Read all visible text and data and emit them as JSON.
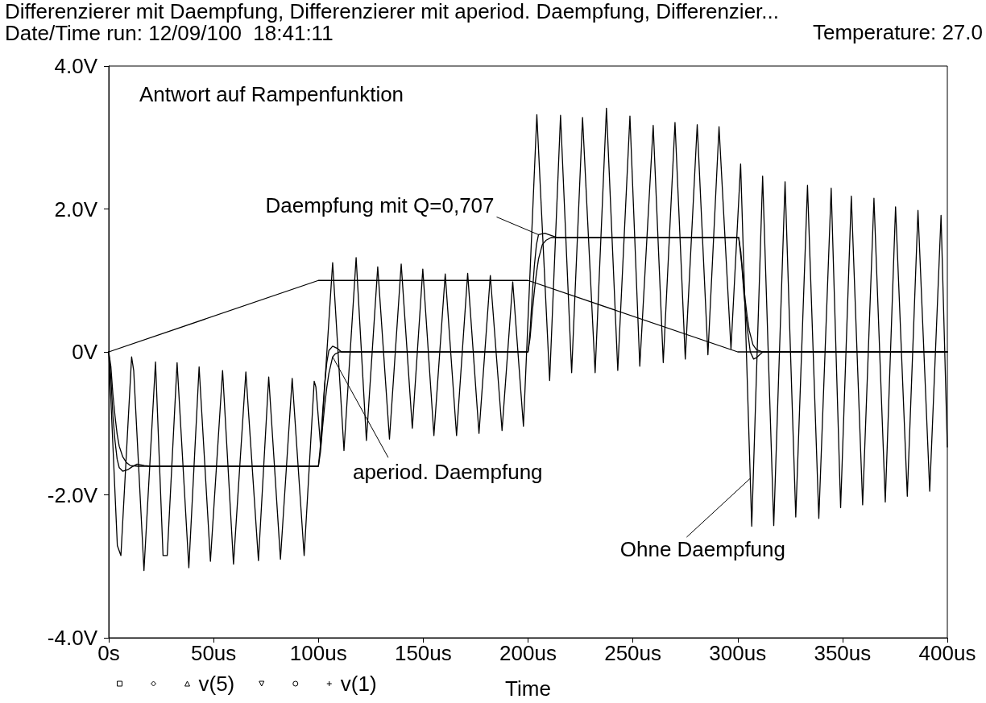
{
  "chart_data": {
    "type": "line",
    "title": "Differenzierer mit Daempfung, Differenzierer mit aperiod. Daempfung, Differenzier...",
    "subtitle": "Date/Time run: 12/09/100  18:41:11",
    "xlabel": "Time",
    "annotations": [
      "Temperature: 27.0",
      "Antwort auf Rampenfunktion",
      {
        "text": "Daempfung mit Q=0,707",
        "x": 205,
        "y": 1.64
      },
      {
        "text": "aperiod. Daempfung",
        "x": 106.8,
        "y": -0.07
      },
      {
        "text": "Ohne Daempfung",
        "x": 306,
        "y": -1.77
      }
    ],
    "xlim": [
      0,
      400
    ],
    "xticks": [
      {
        "value": 0,
        "label": "0s"
      },
      {
        "value": 50,
        "label": "50us"
      },
      {
        "value": 100,
        "label": "100us"
      },
      {
        "value": 150,
        "label": "150us"
      },
      {
        "value": 200,
        "label": "200us"
      },
      {
        "value": 250,
        "label": "250us"
      },
      {
        "value": 300,
        "label": "300us"
      },
      {
        "value": 350,
        "label": "350us"
      },
      {
        "value": 400,
        "label": "400us"
      }
    ],
    "ylim": [
      -4,
      4
    ],
    "yticks": [
      {
        "value": -4,
        "label": "-4.0V"
      },
      {
        "value": -2,
        "label": "-2.0V"
      },
      {
        "value": 0,
        "label": "0V"
      },
      {
        "value": 2,
        "label": "2.0V"
      },
      {
        "value": 4,
        "label": "4.0V"
      }
    ],
    "grid": false,
    "legend": "bottom left",
    "marker": "none",
    "line_style": "solid",
    "series": [
      {
        "color": "#000000",
        "x": [
          0,
          1,
          2,
          3,
          4,
          5,
          6.7,
          9,
          11,
          13.5,
          17,
          20,
          100,
          101,
          102,
          103,
          104,
          105,
          106.8,
          109,
          111,
          200,
          201,
          202,
          203,
          204,
          205,
          208,
          211,
          214,
          300.5,
          302,
          303,
          304.5,
          306,
          307.6,
          309,
          312,
          400
        ],
        "values": [
          0,
          -0.35,
          -0.9,
          -1.25,
          -1.5,
          -1.62,
          -1.67,
          -1.65,
          -1.61,
          -1.57,
          -1.59,
          -1.6,
          -1.6,
          -1.3,
          -0.85,
          -0.45,
          -0.15,
          0.02,
          0.08,
          0.05,
          0,
          0,
          0.3,
          0.8,
          1.2,
          1.5,
          1.64,
          1.66,
          1.63,
          1.6,
          1.6,
          1.2,
          0.8,
          0.35,
          0,
          -0.1,
          -0.08,
          0,
          0
        ]
      },
      {
        "color": "#000000",
        "x": [
          0,
          1,
          2,
          3,
          4,
          5,
          6.7,
          8.5,
          10.2,
          14,
          100,
          101,
          102,
          103,
          104,
          105,
          106.8,
          108,
          110,
          200,
          201,
          202,
          203,
          204,
          205,
          206.8,
          208.5,
          211,
          300.5,
          301.5,
          302.5,
          303.5,
          304.5,
          305.5,
          307.3,
          309,
          312,
          400
        ],
        "values": [
          0,
          -0.2,
          -0.6,
          -0.9,
          -1.15,
          -1.32,
          -1.47,
          -1.55,
          -1.59,
          -1.6,
          -1.6,
          -1.4,
          -1.05,
          -0.75,
          -0.5,
          -0.3,
          -0.07,
          -0.03,
          0,
          0,
          0.2,
          0.55,
          0.85,
          1.1,
          1.3,
          1.5,
          1.56,
          1.6,
          1.6,
          1.4,
          1.05,
          0.75,
          0.5,
          0.3,
          0.1,
          0.03,
          0,
          0
        ]
      },
      {
        "name": "v(5)",
        "color": "#000000",
        "x": [
          0,
          4.1,
          5.8,
          10.9,
          11.9,
          16.8,
          22.3,
          25.9,
          27.9,
          32.6,
          38.2,
          43.1,
          48.5,
          54.3,
          59.5,
          65.4,
          71.4,
          76.3,
          81.9,
          87.5,
          93.2,
          98,
          98.8,
          101.1,
          106.8,
          112.2,
          118,
          122.9,
          128.3,
          133.9,
          139.5,
          144.8,
          149.8,
          155.1,
          160.5,
          165.9,
          171.2,
          176.6,
          182,
          187.6,
          192.7,
          197.8,
          204.2,
          210.3,
          215.5,
          220.8,
          226,
          232,
          237.4,
          242.8,
          248.6,
          253.3,
          259.7,
          264.5,
          270.1,
          275,
          280.7,
          285.8,
          291.1,
          296.8,
          301.4,
          306.7,
          311.9,
          317.2,
          322.6,
          327.7,
          333.3,
          338.7,
          344.6,
          349.1,
          354.2,
          359.6,
          365,
          370.4,
          375.3,
          380.9,
          386,
          391.6,
          397,
          400
        ],
        "values": [
          0,
          -2.71,
          -2.85,
          -0.07,
          -0.26,
          -3.06,
          -0.14,
          -2.85,
          -2.85,
          -0.15,
          -3.02,
          -0.21,
          -2.93,
          -0.26,
          -2.97,
          -0.28,
          -2.92,
          -0.35,
          -2.9,
          -0.37,
          -2.85,
          -0.41,
          -0.49,
          -1.34,
          1.25,
          -1.38,
          1.32,
          -1.24,
          1.19,
          -1.22,
          1.23,
          -1.07,
          1.16,
          -1.17,
          1.09,
          -1.17,
          1.1,
          -1.14,
          1.07,
          -1.1,
          0.98,
          -1.04,
          3.32,
          -0.4,
          3.31,
          -0.29,
          3.28,
          -0.29,
          3.41,
          -0.26,
          3.3,
          -0.2,
          3.17,
          -0.15,
          3.21,
          -0.1,
          3.18,
          -0.04,
          3.15,
          0.04,
          2.63,
          -2.44,
          2.46,
          -2.43,
          2.38,
          -2.31,
          2.33,
          -2.33,
          2.29,
          -2.18,
          2.18,
          -2.14,
          2.15,
          -2.1,
          2.03,
          -2.02,
          1.98,
          -1.95,
          1.91,
          -1.33
        ]
      },
      {
        "name": "v(1)",
        "color": "#000000",
        "x": [
          0,
          100,
          200,
          300,
          400
        ],
        "values": [
          0,
          1,
          1,
          0,
          0
        ]
      }
    ]
  }
}
